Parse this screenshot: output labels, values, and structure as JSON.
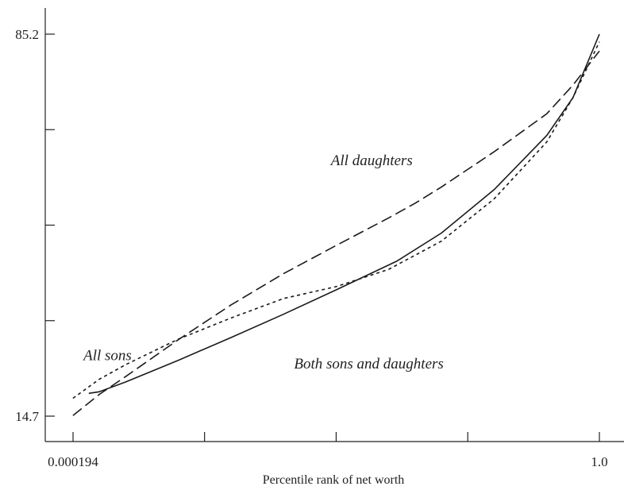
{
  "chart_data": {
    "type": "line",
    "xlabel": "Percentile rank of net worth",
    "ylabel": "",
    "x_tick_labels": [
      {
        "x": 0.000194,
        "label": "0.000194"
      },
      {
        "x": 1.0,
        "label": "1.0"
      }
    ],
    "x_ticks": [
      0.000194,
      0.25,
      0.5,
      0.75,
      1.0
    ],
    "y_tick_labels": [
      {
        "y": 14.7,
        "label": "14.7"
      },
      {
        "y": 85.2,
        "label": "85.2"
      }
    ],
    "y_ticks": [
      14.7,
      32.325,
      49.95,
      67.575,
      85.2
    ],
    "xlim": [
      -0.05,
      1.0
    ],
    "ylim": [
      11.0,
      88.0
    ],
    "grid": false,
    "legend": "none",
    "annotations": [
      {
        "text": "All daughters",
        "x": 0.49,
        "y": 61.0
      },
      {
        "text": "All sons",
        "x": 0.02,
        "y": 25.0
      },
      {
        "text": "Both sons and daughters",
        "x": 0.42,
        "y": 23.5
      }
    ],
    "series": [
      {
        "style": "solid",
        "x": [
          0.03,
          0.05,
          0.1,
          0.2,
          0.3,
          0.4,
          0.5,
          0.6,
          0.615,
          0.7,
          0.8,
          0.9,
          0.95,
          1.0
        ],
        "y": [
          18.9,
          19.2,
          21.0,
          25.0,
          29.2,
          33.5,
          38.0,
          42.6,
          43.3,
          48.5,
          56.5,
          66.5,
          73.5,
          85.2
        ]
      },
      {
        "style": "dotted",
        "x": [
          0.0,
          0.05,
          0.1,
          0.2,
          0.3,
          0.4,
          0.5,
          0.6,
          0.7,
          0.8,
          0.9,
          0.95,
          1.0
        ],
        "y": [
          18.0,
          21.5,
          24.2,
          28.9,
          32.8,
          36.4,
          38.6,
          41.8,
          47.0,
          54.8,
          65.3,
          73.5,
          83.8
        ]
      },
      {
        "style": "dashed",
        "x": [
          0.0,
          0.05,
          0.1,
          0.2,
          0.3,
          0.4,
          0.5,
          0.6,
          0.65,
          0.7,
          0.8,
          0.9,
          0.95,
          1.0
        ],
        "y": [
          14.8,
          18.7,
          22.0,
          28.8,
          35.2,
          41.0,
          46.2,
          51.3,
          54.0,
          57.0,
          63.5,
          70.5,
          75.8,
          82.1
        ]
      }
    ]
  }
}
